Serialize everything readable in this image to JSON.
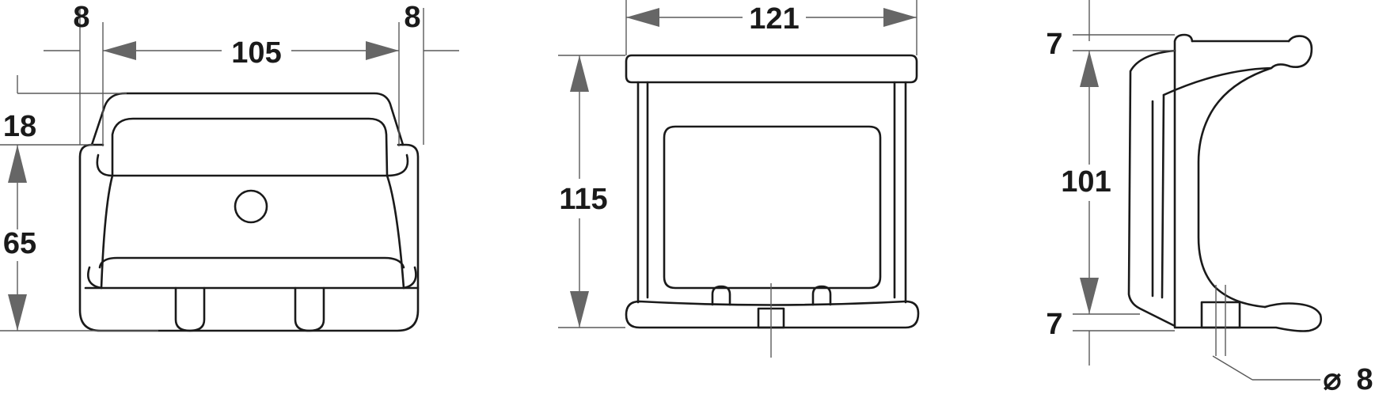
{
  "front_view": {
    "dim_left_flange": "8",
    "dim_inner_width": "105",
    "dim_right_flange": "8",
    "dim_top_height": "18",
    "dim_bottom_height": "65"
  },
  "side_view": {
    "dim_width": "121",
    "dim_height": "115"
  },
  "profile_view": {
    "dim_top_thickness": "7",
    "dim_inner_height": "101",
    "dim_bottom_thickness": "7",
    "diameter_symbol": "⌀",
    "dim_hole_diameter": "8"
  }
}
